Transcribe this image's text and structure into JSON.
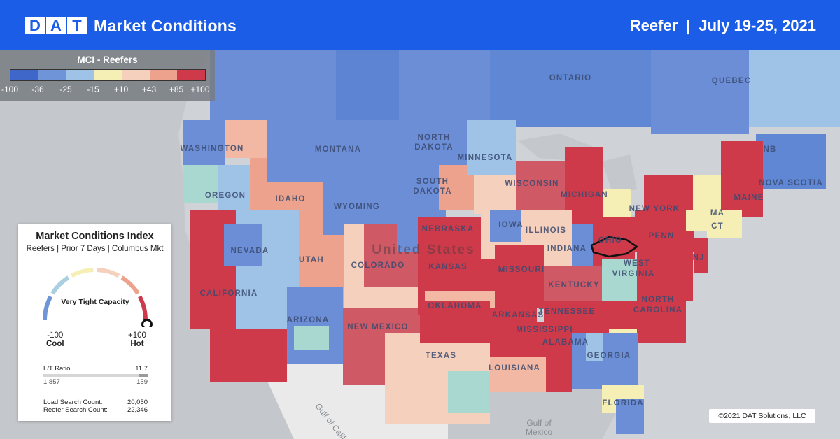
{
  "header": {
    "logo_letters": [
      "D",
      "A",
      "T"
    ],
    "title": "Market Conditions",
    "equipment": "Reefer",
    "separator": "|",
    "date_range": "July 19-25, 2021"
  },
  "legend": {
    "title": "MCI - Reefers",
    "ticks": [
      "-100",
      "-36",
      "-25",
      "-15",
      "+10",
      "+43",
      "+85",
      "+100"
    ],
    "colors": [
      "#3f67c9",
      "#6f95d8",
      "#9fc3e6",
      "#f6efb5",
      "#f5d0bc",
      "#eca28c",
      "#cf3a4a"
    ]
  },
  "map_labels": {
    "provinces": [
      "ONTARIO",
      "QUEBEC",
      "NB",
      "NOVA SCOTIA"
    ],
    "states": [
      "WASHINGTON",
      "MONTANA",
      "NORTH",
      "DAKOTA",
      "MINNESOTA",
      "OREGON",
      "IDAHO",
      "WYOMING",
      "SOUTH",
      "DAKOTA",
      "WISCONSIN",
      "MICHIGAN",
      "NEW YORK",
      "MAINE",
      "NEVADA",
      "UTAH",
      "COLORADO",
      "NEBRASKA",
      "KANSAS",
      "IOWA",
      "ILLINOIS",
      "INDIANA",
      "OHIO",
      "PENN",
      "NJ",
      "CALIFORNIA",
      "ARIZONA",
      "NEW MEXICO",
      "OKLAHOMA",
      "MISSOURI",
      "KENTUCKY",
      "WEST",
      "VIRGINIA",
      "TENNESSEE",
      "NORTH",
      "CAROLINA",
      "ARKANSAS",
      "MISSISSIPPI",
      "ALABAMA",
      "GEORGIA",
      "TEXAS",
      "LOUISIANA",
      "FLORIDA",
      "MA",
      "CT"
    ],
    "country": "United States",
    "water": [
      "Gulf of California",
      "Gulf of",
      "Mexico"
    ]
  },
  "card": {
    "title": "Market Conditions Index",
    "subtitle": "Reefers | Prior 7 Days | Columbus Mkt",
    "gauge_label": "Very Tight Capacity",
    "gauge_value": 100,
    "gauge_colors": [
      "#6f95d8",
      "#a9cfe0",
      "#f6efb5",
      "#f5d0bc",
      "#eca28c",
      "#cf3a4a"
    ],
    "min_value": "-100",
    "min_label": "Cool",
    "max_value": "+100",
    "max_label": "Hot",
    "lt_label": "L/T Ratio",
    "lt_value": "11.7",
    "lt_left": "1,857",
    "lt_right": "159",
    "lt_fraction": 0.086,
    "load_search_label": "Load Search Count:",
    "load_search_value": "20,050",
    "reefer_search_label": "Reefer Search Count:",
    "reefer_search_value": "22,346"
  },
  "copyright": "©2021 DAT Solutions, LLC"
}
